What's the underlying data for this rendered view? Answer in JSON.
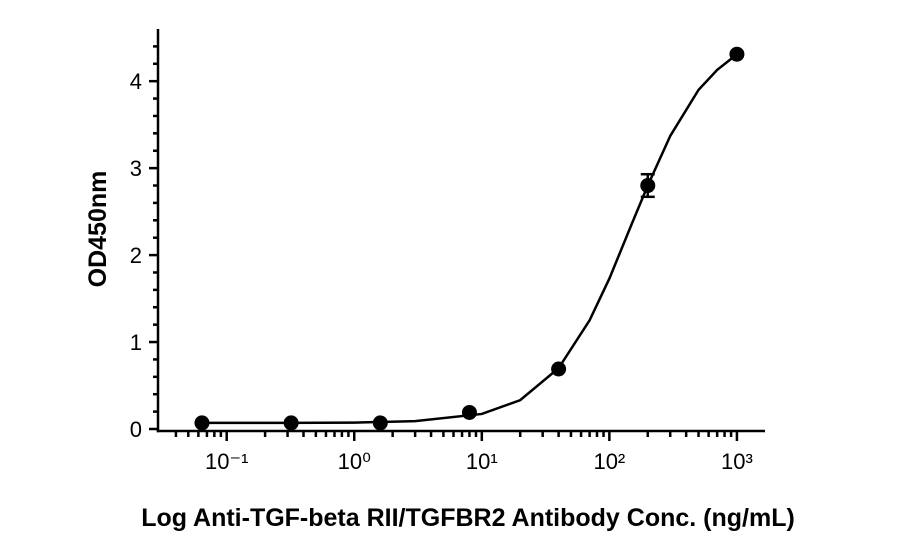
{
  "chart_data": {
    "type": "scatter",
    "x_label": "Log Anti-TGF-beta RII/TGFBR2 Antibody Conc. (ng/mL)",
    "y_label": "OD450nm",
    "x_scale": "log",
    "xlim": [
      0.03,
      1660
    ],
    "ylim": [
      0,
      4.6
    ],
    "xticks": [
      {
        "value": 0.1,
        "label": "10⁻¹"
      },
      {
        "value": 1,
        "label": "10⁰"
      },
      {
        "value": 10,
        "label": "10¹"
      },
      {
        "value": 100,
        "label": "10²"
      },
      {
        "value": 1000,
        "label": "10³"
      }
    ],
    "xminor_ticks": [
      0.04,
      0.05,
      0.06,
      0.07,
      0.08,
      0.09,
      0.2,
      0.3,
      0.4,
      0.5,
      0.6,
      0.7,
      0.8,
      0.9,
      2,
      3,
      4,
      5,
      6,
      7,
      8,
      9,
      20,
      30,
      40,
      50,
      60,
      70,
      80,
      90,
      200,
      300,
      400,
      500,
      600,
      700,
      800,
      900
    ],
    "yticks": [
      0,
      1,
      2,
      3,
      4
    ],
    "yminor_ticks": [
      0.2,
      0.4,
      0.6,
      0.8,
      1.2,
      1.4,
      1.6,
      1.8,
      2.2,
      2.4,
      2.6,
      2.8,
      3.2,
      3.4,
      3.6,
      3.8,
      4.2,
      4.4
    ],
    "series": [
      {
        "color": "#000000",
        "x": [
          0.064,
          0.32,
          1.6,
          8,
          40,
          200,
          1000
        ],
        "values": [
          0.07,
          0.07,
          0.07,
          0.19,
          0.69,
          2.8,
          4.31
        ],
        "errors": [
          0,
          0,
          0,
          0,
          0,
          0.13,
          0
        ]
      },
      {
        "color": "#000000",
        "line": true,
        "x": [
          0.064,
          0.1,
          0.3,
          1,
          3,
          10,
          20,
          40,
          70,
          100,
          150,
          200,
          300,
          500,
          700,
          1000
        ],
        "values": [
          0.07,
          0.07,
          0.07,
          0.074,
          0.09,
          0.173,
          0.332,
          0.7,
          1.25,
          1.73,
          2.36,
          2.8,
          3.37,
          3.9,
          4.13,
          4.31
        ]
      }
    ]
  }
}
